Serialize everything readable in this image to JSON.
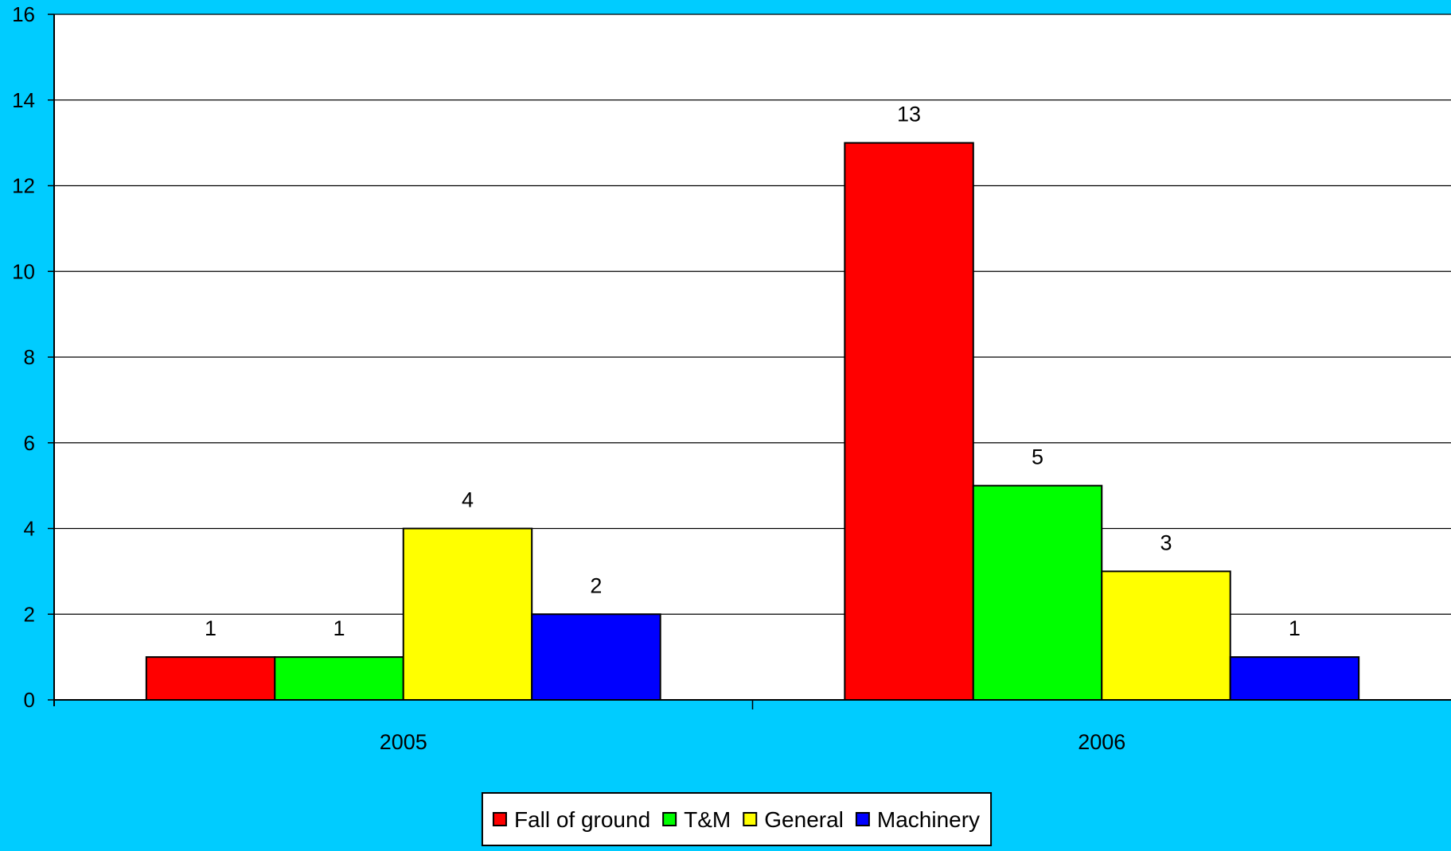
{
  "colors": {
    "background": "#00ccff",
    "plot_area": "#ffffff",
    "grid": "#000000"
  },
  "chart_data": {
    "type": "bar",
    "categories": [
      "2005",
      "2006"
    ],
    "series": [
      {
        "name": "Fall of ground",
        "color": "#ff0000",
        "values": [
          1,
          13
        ]
      },
      {
        "name": "T&M",
        "color": "#00ff00",
        "values": [
          1,
          5
        ]
      },
      {
        "name": "General",
        "color": "#ffff00",
        "values": [
          4,
          3
        ]
      },
      {
        "name": "Machinery",
        "color": "#0000ff",
        "values": [
          2,
          1
        ]
      }
    ],
    "title": "",
    "xlabel": "",
    "ylabel": "",
    "ylim": [
      0,
      16
    ],
    "yticks": [
      0,
      2,
      4,
      6,
      8,
      10,
      12,
      14,
      16
    ],
    "data_labels": true,
    "grid": true,
    "legend_position": "bottom-center"
  }
}
